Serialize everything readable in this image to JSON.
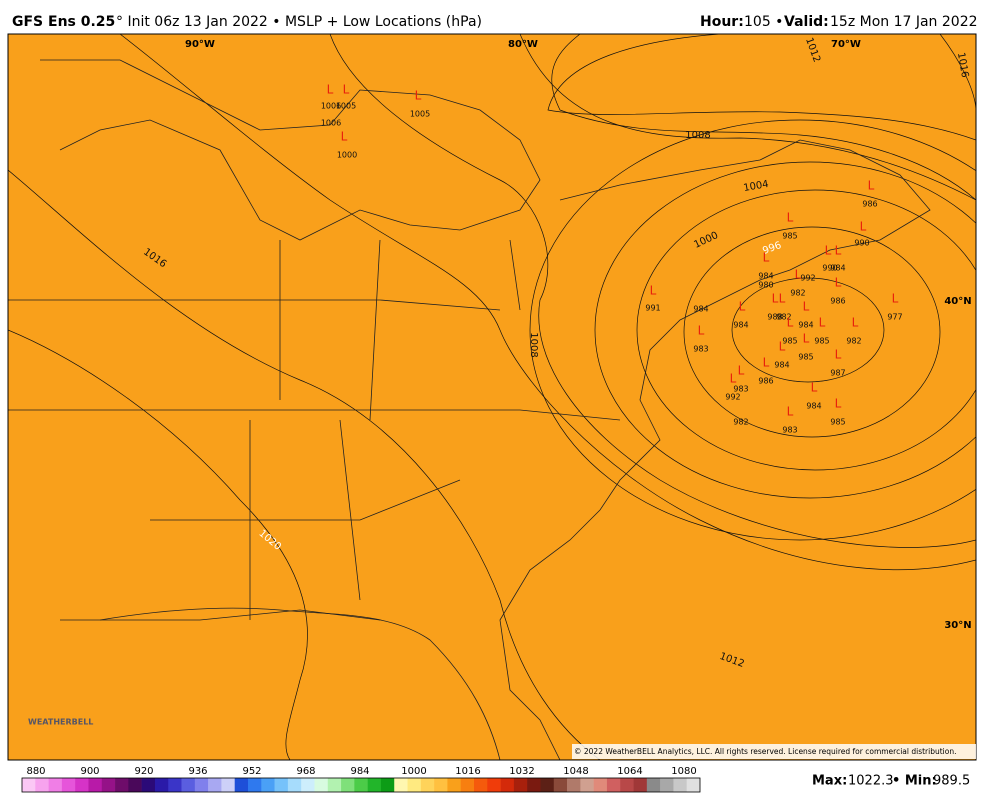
{
  "header": {
    "model": "GFS Ens 0.25",
    "init": "° Init 06z 13 Jan 2022 • MSLP + Low Locations (hPa)",
    "hour_label": "Hour:",
    "hour": "105 •",
    "valid_label": "Valid:",
    "valid": "15z Mon 17 Jan 2022"
  },
  "map": {
    "graticule": [
      "90°W",
      "80°W",
      "70°W",
      "40°N",
      "30°N"
    ],
    "contour_labels": [
      "1016",
      "1012",
      "1008",
      "1004",
      "1000",
      "996",
      "1016",
      "1020",
      "1012",
      "1008"
    ],
    "low_marker": "L",
    "lows": [
      1006,
      1005,
      1006,
      1000,
      1005,
      986,
      985,
      990,
      990,
      984,
      984,
      980,
      992,
      982,
      986,
      977,
      991,
      984,
      984,
      988,
      982,
      984,
      985,
      982,
      983,
      985,
      985,
      984,
      987,
      986,
      983,
      992,
      984,
      982,
      983,
      985
    ],
    "logo": "WEATHERBELL",
    "copyright": "© 2022 WeatherBELL Analytics, LLC. All rights reserved. License required for commercial distribution."
  },
  "colorbar": {
    "ticks": [
      880,
      900,
      920,
      936,
      952,
      968,
      984,
      1000,
      1016,
      1032,
      1048,
      1064,
      1080
    ],
    "colors": [
      "#fbc8f5",
      "#f7a3ee",
      "#f07ee6",
      "#e655da",
      "#d633c7",
      "#b81aa8",
      "#951288",
      "#6e0c6a",
      "#4a085a",
      "#2b0a78",
      "#2a1aa8",
      "#3a35c8",
      "#5a5ee0",
      "#8080ec",
      "#a8a8f2",
      "#cdd0f8",
      "#1e4fd8",
      "#2f79ee",
      "#4aa0f6",
      "#76c2fa",
      "#a6dcfc",
      "#cdeefc",
      "#d8fbe0",
      "#b2f2b0",
      "#7fe07a",
      "#4ccc48",
      "#22b52a",
      "#0c9c16",
      "#fff7b0",
      "#ffea80",
      "#ffd35a",
      "#ffc040",
      "#f9a01b",
      "#f77f10",
      "#f55a0c",
      "#f03c0a",
      "#d42a0a",
      "#a8200c",
      "#7a1a10",
      "#5c2016",
      "#8a4a3a",
      "#b07a6a",
      "#d0a090",
      "#e08a7a",
      "#d06060",
      "#b84848",
      "#a03838",
      "#8a8a8a",
      "#a8a8a8",
      "#c8c8c8",
      "#e0e0e0"
    ]
  },
  "footer": {
    "max_label": "Max:",
    "max": "1022.3",
    "min_label": "• Min:",
    "min": "989.5"
  }
}
